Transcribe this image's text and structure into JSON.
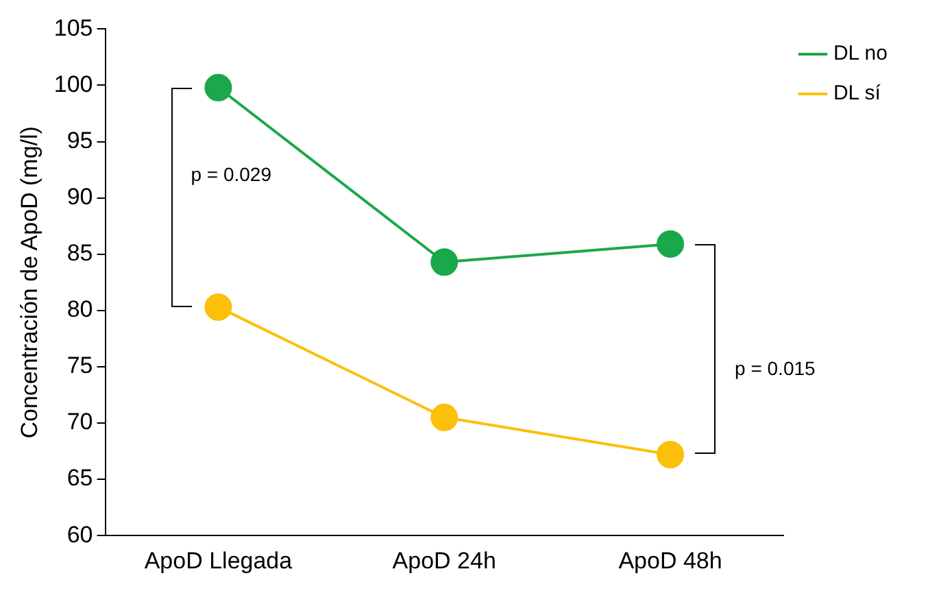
{
  "chart_data": {
    "type": "line",
    "ylabel": "Concentración de ApoD (mg/l)",
    "categories": [
      "ApoD Llegada",
      "ApoD 24h",
      "ApoD 48h"
    ],
    "series": [
      {
        "name": "DL no",
        "color": "#1aa84a",
        "values": [
          99.8,
          84.3,
          85.9
        ]
      },
      {
        "name": "DL sí",
        "color": "#fbbf0c",
        "values": [
          80.3,
          70.5,
          67.2
        ]
      }
    ],
    "ylim": [
      60,
      105
    ],
    "yticks": [
      60,
      65,
      70,
      75,
      80,
      85,
      90,
      95,
      100,
      105
    ],
    "grid": false,
    "legend": "top right",
    "marker": "circle",
    "line_style": "solid",
    "annotations": [
      "p = 0.029",
      "p = 0.015"
    ]
  }
}
